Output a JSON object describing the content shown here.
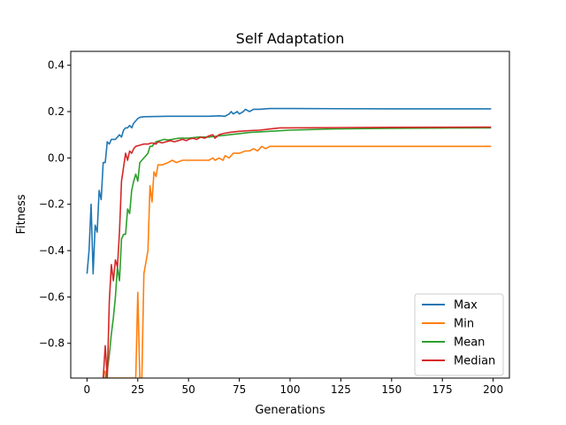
{
  "chart_data": {
    "type": "line",
    "title": "Self Adaptation",
    "xlabel": "Generations",
    "ylabel": "Fitness",
    "xlim": [
      -8,
      208
    ],
    "ylim": [
      -0.95,
      0.46
    ],
    "xticks": [
      0,
      25,
      50,
      75,
      100,
      125,
      150,
      175,
      200
    ],
    "yticks": [
      -0.8,
      -0.6,
      -0.4,
      -0.2,
      0.0,
      0.2,
      0.4
    ],
    "ytick_labels": [
      "−0.8",
      "−0.6",
      "−0.4",
      "−0.2",
      "0.0",
      "0.2",
      "0.4"
    ],
    "legend_position": "lower right",
    "grid": false,
    "series": [
      {
        "name": "Max",
        "color": "#1f77b4",
        "points": [
          [
            0,
            -0.5
          ],
          [
            1,
            -0.4
          ],
          [
            2,
            -0.2
          ],
          [
            3,
            -0.5
          ],
          [
            4,
            -0.29
          ],
          [
            5,
            -0.32
          ],
          [
            6,
            -0.14
          ],
          [
            7,
            -0.18
          ],
          [
            8,
            -0.02
          ],
          [
            9,
            -0.02
          ],
          [
            10,
            0.07
          ],
          [
            11,
            0.06
          ],
          [
            12,
            0.08
          ],
          [
            13,
            0.08
          ],
          [
            14,
            0.08
          ],
          [
            15,
            0.09
          ],
          [
            16,
            0.1
          ],
          [
            17,
            0.09
          ],
          [
            18,
            0.12
          ],
          [
            19,
            0.13
          ],
          [
            20,
            0.13
          ],
          [
            21,
            0.14
          ],
          [
            22,
            0.13
          ],
          [
            23,
            0.15
          ],
          [
            24,
            0.16
          ],
          [
            25,
            0.17
          ],
          [
            26,
            0.175
          ],
          [
            28,
            0.178
          ],
          [
            40,
            0.18
          ],
          [
            50,
            0.18
          ],
          [
            60,
            0.18
          ],
          [
            65,
            0.182
          ],
          [
            68,
            0.18
          ],
          [
            70,
            0.19
          ],
          [
            71,
            0.2
          ],
          [
            72,
            0.19
          ],
          [
            74,
            0.2
          ],
          [
            75,
            0.19
          ],
          [
            77,
            0.2
          ],
          [
            78,
            0.21
          ],
          [
            80,
            0.2
          ],
          [
            82,
            0.21
          ],
          [
            85,
            0.21
          ],
          [
            90,
            0.213
          ],
          [
            100,
            0.213
          ],
          [
            150,
            0.212
          ],
          [
            199,
            0.212
          ]
        ]
      },
      {
        "name": "Min",
        "color": "#ff7f0e",
        "points": [
          [
            8,
            -0.95
          ],
          [
            9,
            -0.92
          ],
          [
            10,
            -0.95
          ],
          [
            24,
            -0.95
          ],
          [
            25,
            -0.58
          ],
          [
            26,
            -0.95
          ],
          [
            27,
            -0.95
          ],
          [
            28,
            -0.5
          ],
          [
            29,
            -0.45
          ],
          [
            30,
            -0.4
          ],
          [
            31,
            -0.12
          ],
          [
            32,
            -0.19
          ],
          [
            33,
            -0.06
          ],
          [
            34,
            -0.08
          ],
          [
            35,
            -0.03
          ],
          [
            37,
            -0.03
          ],
          [
            40,
            -0.02
          ],
          [
            42,
            -0.01
          ],
          [
            44,
            -0.02
          ],
          [
            47,
            -0.01
          ],
          [
            50,
            -0.01
          ],
          [
            55,
            -0.01
          ],
          [
            60,
            -0.01
          ],
          [
            62,
            0.0
          ],
          [
            63,
            -0.01
          ],
          [
            65,
            0.0
          ],
          [
            67,
            -0.01
          ],
          [
            68,
            0.01
          ],
          [
            70,
            0.0
          ],
          [
            72,
            0.02
          ],
          [
            75,
            0.02
          ],
          [
            78,
            0.03
          ],
          [
            80,
            0.03
          ],
          [
            82,
            0.04
          ],
          [
            84,
            0.03
          ],
          [
            86,
            0.05
          ],
          [
            88,
            0.04
          ],
          [
            90,
            0.05
          ],
          [
            95,
            0.05
          ],
          [
            199,
            0.05
          ]
        ]
      },
      {
        "name": "Mean",
        "color": "#2ca02c",
        "points": [
          [
            9,
            -0.95
          ],
          [
            10,
            -0.92
          ],
          [
            11,
            -0.85
          ],
          [
            12,
            -0.76
          ],
          [
            13,
            -0.69
          ],
          [
            14,
            -0.6
          ],
          [
            15,
            -0.47
          ],
          [
            16,
            -0.53
          ],
          [
            17,
            -0.35
          ],
          [
            18,
            -0.33
          ],
          [
            19,
            -0.33
          ],
          [
            20,
            -0.22
          ],
          [
            21,
            -0.24
          ],
          [
            22,
            -0.14
          ],
          [
            23,
            -0.1
          ],
          [
            24,
            -0.07
          ],
          [
            25,
            -0.1
          ],
          [
            26,
            -0.02
          ],
          [
            27,
            -0.01
          ],
          [
            28,
            0.0
          ],
          [
            29,
            0.01
          ],
          [
            30,
            0.02
          ],
          [
            31,
            0.05
          ],
          [
            32,
            0.05
          ],
          [
            33,
            0.06
          ],
          [
            34,
            0.07
          ],
          [
            36,
            0.075
          ],
          [
            38,
            0.08
          ],
          [
            40,
            0.077
          ],
          [
            45,
            0.085
          ],
          [
            50,
            0.085
          ],
          [
            55,
            0.09
          ],
          [
            60,
            0.09
          ],
          [
            65,
            0.095
          ],
          [
            70,
            0.1
          ],
          [
            75,
            0.105
          ],
          [
            80,
            0.11
          ],
          [
            90,
            0.115
          ],
          [
            100,
            0.12
          ],
          [
            120,
            0.125
          ],
          [
            150,
            0.128
          ],
          [
            199,
            0.13
          ]
        ]
      },
      {
        "name": "Median",
        "color": "#d62728",
        "points": [
          [
            8,
            -0.95
          ],
          [
            9,
            -0.81
          ],
          [
            10,
            -0.95
          ],
          [
            11,
            -0.62
          ],
          [
            12,
            -0.46
          ],
          [
            13,
            -0.53
          ],
          [
            14,
            -0.44
          ],
          [
            15,
            -0.47
          ],
          [
            16,
            -0.32
          ],
          [
            17,
            -0.1
          ],
          [
            18,
            -0.04
          ],
          [
            19,
            0.02
          ],
          [
            20,
            -0.01
          ],
          [
            21,
            0.03
          ],
          [
            22,
            0.02
          ],
          [
            23,
            0.04
          ],
          [
            24,
            0.05
          ],
          [
            26,
            0.055
          ],
          [
            28,
            0.06
          ],
          [
            30,
            0.06
          ],
          [
            32,
            0.065
          ],
          [
            34,
            0.06
          ],
          [
            35,
            0.07
          ],
          [
            37,
            0.065
          ],
          [
            39,
            0.07
          ],
          [
            41,
            0.075
          ],
          [
            43,
            0.07
          ],
          [
            45,
            0.075
          ],
          [
            47,
            0.08
          ],
          [
            49,
            0.075
          ],
          [
            50,
            0.08
          ],
          [
            52,
            0.085
          ],
          [
            54,
            0.08
          ],
          [
            56,
            0.09
          ],
          [
            58,
            0.085
          ],
          [
            60,
            0.095
          ],
          [
            62,
            0.1
          ],
          [
            63,
            0.085
          ],
          [
            65,
            0.1
          ],
          [
            67,
            0.105
          ],
          [
            70,
            0.11
          ],
          [
            75,
            0.115
          ],
          [
            80,
            0.118
          ],
          [
            85,
            0.12
          ],
          [
            90,
            0.125
          ],
          [
            95,
            0.13
          ],
          [
            100,
            0.13
          ],
          [
            150,
            0.132
          ],
          [
            199,
            0.133
          ]
        ]
      }
    ]
  }
}
